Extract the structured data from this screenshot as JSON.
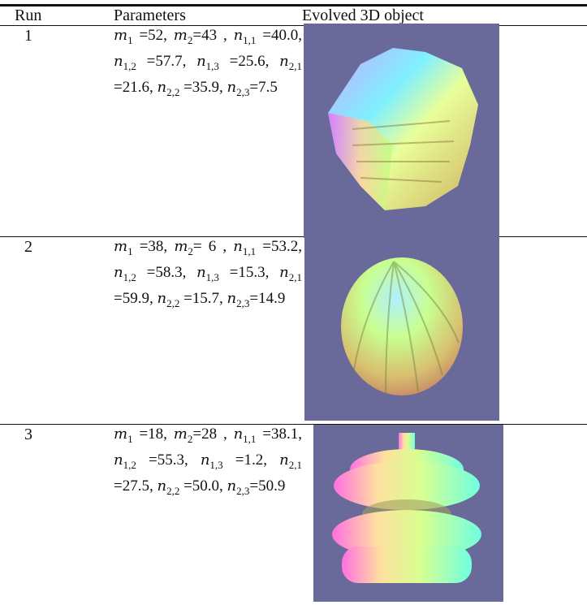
{
  "table": {
    "header": [
      "Run",
      "Parameters",
      "Evolved 3D object"
    ],
    "rows": [
      {
        "run": "1",
        "params": [
          {
            "var": "m",
            "sub": "1",
            "rest": " =52, "
          },
          {
            "var": "m",
            "sub": "2",
            "rest": "=43 , "
          },
          {
            "var": "n",
            "sub": "1,1",
            "rest": " =40.0, "
          },
          {
            "var": "n",
            "sub": "1,2",
            "rest": " =57.7, "
          },
          {
            "var": "n",
            "sub": "1,3",
            "rest": " =25.6, "
          },
          {
            "var": "n",
            "sub": "2,1",
            "rest": " =21.6, "
          },
          {
            "var": "n",
            "sub": "2,2",
            "rest": " =35.9, "
          },
          {
            "var": "n",
            "sub": "2,3",
            "rest": "=7.5"
          }
        ]
      },
      {
        "run": "2",
        "params": [
          {
            "var": "m",
            "sub": "1",
            "rest": " =38, "
          },
          {
            "var": "m",
            "sub": "2",
            "rest": "= 6 , "
          },
          {
            "var": "n",
            "sub": "1,1",
            "rest": " =53.2, "
          },
          {
            "var": "n",
            "sub": "1,2",
            "rest": " =58.3, "
          },
          {
            "var": "n",
            "sub": "1,3",
            "rest": " =15.3, "
          },
          {
            "var": "n",
            "sub": "2,1",
            "rest": " =59.9, "
          },
          {
            "var": "n",
            "sub": "2,2",
            "rest": " =15.7, "
          },
          {
            "var": "n",
            "sub": "2,3",
            "rest": "=14.9"
          }
        ]
      },
      {
        "run": "3",
        "params": [
          {
            "var": "m",
            "sub": "1",
            "rest": " =18, "
          },
          {
            "var": "m",
            "sub": "2",
            "rest": "=28 , "
          },
          {
            "var": "n",
            "sub": "1,1",
            "rest": " =38.1, "
          },
          {
            "var": "n",
            "sub": "1,2",
            "rest": " =55.3, "
          },
          {
            "var": "n",
            "sub": "1,3",
            "rest": " =1.2, "
          },
          {
            "var": "n",
            "sub": "2,1",
            "rest": " =27.5, "
          },
          {
            "var": "n",
            "sub": "2,2",
            "rest": " =50.0, "
          },
          {
            "var": "n",
            "sub": "2,3",
            "rest": "=50.9"
          }
        ]
      }
    ]
  }
}
